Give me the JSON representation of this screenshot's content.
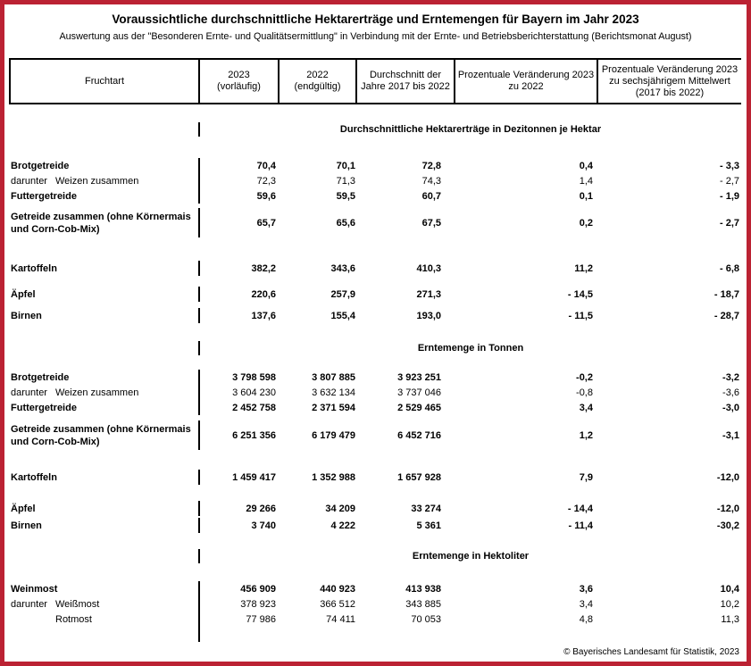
{
  "page": {
    "title": "Voraussichtliche durchschnittliche Hektarerträge und Erntemengen für Bayern im Jahr 2023",
    "subtitle": "Auswertung aus der \"Besonderen Ernte- und Qualitätsermittlung\" in Verbindung mit der Ernte- und Betriebsberichterstattung (Berichtsmonat August)",
    "copyright": "© Bayerisches Landesamt für Statistik, 2023",
    "frame_color": "#bb2233",
    "line_color": "#000000"
  },
  "table": {
    "columns": [
      "Fruchtart",
      "2023\n(vorläufig)",
      "2022\n(endgültig)",
      "Durchschnitt der Jahre 2017 bis 2022",
      "Prozentuale Veränderung 2023 zu 2022",
      "Prozentuale Veränderung 2023 zu sechsjährigem Mittelwert (2017 bis 2022)"
    ],
    "sections": [
      {
        "heading": "Durchschnittliche Hektarerträge in Dezitonnen je Hektar",
        "rows": [
          {
            "prefix": "",
            "label": "Brotgetreide",
            "bold": true,
            "gap": 0,
            "values": [
              "70,4",
              "70,1",
              "72,8",
              "0,4",
              "- 3,3"
            ]
          },
          {
            "prefix": "darunter",
            "label": "Weizen zusammen",
            "bold": false,
            "gap": 0,
            "values": [
              "72,3",
              "71,3",
              "74,3",
              "1,4",
              "- 2,7"
            ]
          },
          {
            "prefix": "",
            "label": "Futtergetreide",
            "bold": true,
            "gap": 0,
            "values": [
              "59,6",
              "59,5",
              "60,7",
              "0,1",
              "- 1,9"
            ]
          },
          {
            "prefix": "",
            "label": "Getreide zusammen (ohne Körnermais und Corn-Cob-Mix)",
            "bold": true,
            "twoline": true,
            "gap": 5,
            "values": [
              "65,7",
              "65,6",
              "67,5",
              "0,2",
              "- 2,7"
            ]
          },
          {
            "prefix": "",
            "label": "Kartoffeln",
            "bold": true,
            "gap": 26,
            "values": [
              "382,2",
              "343,6",
              "410,3",
              "11,2",
              "- 6,8"
            ]
          },
          {
            "prefix": "",
            "label": "Äpfel",
            "bold": true,
            "gap": 12,
            "values": [
              "220,6",
              "257,9",
              "271,3",
              "- 14,5",
              "- 18,7"
            ]
          },
          {
            "prefix": "",
            "label": "Birnen",
            "bold": true,
            "gap": 7,
            "values": [
              "137,6",
              "155,4",
              "193,0",
              "- 11,5",
              "- 28,7"
            ]
          }
        ]
      },
      {
        "heading": "Erntemenge in Tonnen",
        "rows": [
          {
            "prefix": "",
            "label": "Brotgetreide",
            "bold": true,
            "gap": 0,
            "values": [
              "3 798 598",
              "3 807 885",
              "3 923 251",
              "-0,2",
              "-3,2"
            ]
          },
          {
            "prefix": "darunter",
            "label": "Weizen zusammen",
            "bold": false,
            "gap": 0,
            "values": [
              "3 604 230",
              "3 632 134",
              "3 737 046",
              "-0,8",
              "-3,6"
            ]
          },
          {
            "prefix": "",
            "label": "Futtergetreide",
            "bold": true,
            "gap": 0,
            "values": [
              "2 452 758",
              "2 371 594",
              "2 529 465",
              "3,4",
              "-3,0"
            ]
          },
          {
            "prefix": "",
            "label": "Getreide zusammen (ohne Körnermais und Corn-Cob-Mix)",
            "bold": true,
            "twoline": true,
            "gap": 6,
            "values": [
              "6 251 356",
              "6 179 479",
              "6 452 716",
              "1,2",
              "-3,1"
            ]
          },
          {
            "prefix": "",
            "label": "Kartoffeln",
            "bold": true,
            "gap": 22,
            "values": [
              "1 459 417",
              "1 352 988",
              "1 657 928",
              "7,9",
              "-12,0"
            ]
          },
          {
            "prefix": "",
            "label": "Äpfel",
            "bold": true,
            "gap": 18,
            "values": [
              "29 266",
              "34 209",
              "33 274",
              "- 14,4",
              "-12,0"
            ]
          },
          {
            "prefix": "",
            "label": "Birnen",
            "bold": true,
            "gap": 2,
            "values": [
              "3 740",
              "4 222",
              "5 361",
              "- 11,4",
              "-30,2"
            ]
          }
        ]
      },
      {
        "heading": "Erntemenge in Hektoliter",
        "rows": [
          {
            "prefix": "",
            "label": "Weinmost",
            "bold": true,
            "gap": 0,
            "values": [
              "456 909",
              "440 923",
              "413 938",
              "3,6",
              "10,4"
            ]
          },
          {
            "prefix": "darunter",
            "label": "Weißmost",
            "bold": false,
            "gap": 0,
            "values": [
              "378 923",
              "366 512",
              "343 885",
              "3,4",
              "10,2"
            ]
          },
          {
            "prefix": "",
            "label": "Rotmost",
            "bold": false,
            "indent": true,
            "gap": 0,
            "values": [
              "77 986",
              "74 411",
              "70 053",
              "4,8",
              "11,3"
            ]
          }
        ]
      }
    ]
  }
}
